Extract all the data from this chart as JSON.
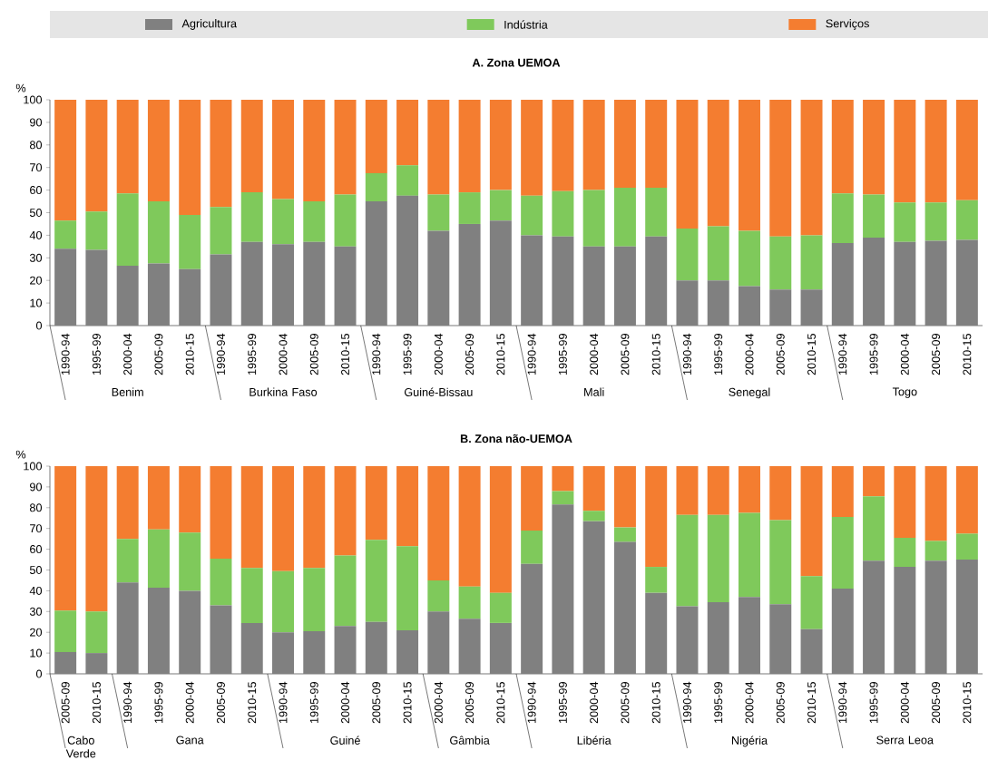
{
  "chart_data": [
    {
      "type": "bar",
      "stacked": true,
      "title": "A. Zona UEMOA",
      "ylabel": "%",
      "legend": "top",
      "categories": [
        "1990-94",
        "1995-99",
        "2000-04",
        "2005-09",
        "2010-15",
        "1990-94",
        "1995-99",
        "2000-04",
        "2005-09",
        "2010-15",
        "1990-94",
        "1995-99",
        "2000-04",
        "2005-09",
        "2010-15",
        "1990-94",
        "1995-99",
        "2000-04",
        "2005-09",
        "2010-15",
        "1990-94",
        "1995-99",
        "2000-04",
        "2005-09",
        "2010-15",
        "1990-94",
        "1995-99",
        "2000-04",
        "2005-09",
        "2010-15"
      ],
      "annotations": [
        "Benim",
        "Burkina Faso",
        "Guiné-Bissau",
        "Mali",
        "Senegal",
        "Togo"
      ],
      "ylim": [
        0,
        100
      ],
      "yticks": [
        0,
        10,
        20,
        30,
        40,
        50,
        60,
        70,
        80,
        90,
        100
      ],
      "series": [
        {
          "name": "Agricultura",
          "color": "#808080",
          "values": [
            34,
            33.5,
            26.5,
            27.5,
            25,
            31.5,
            37,
            36,
            37,
            35,
            55,
            57.5,
            42,
            45,
            46.5,
            40,
            39.5,
            35,
            35,
            39.5,
            20,
            20,
            17.5,
            16,
            16,
            36.5,
            39,
            37,
            37.5,
            38
          ]
        },
        {
          "name": "Indústria",
          "color": "#7fc95b",
          "values": [
            12.5,
            17,
            32,
            27.5,
            24,
            21,
            22,
            20,
            18,
            23,
            12.5,
            13.5,
            16,
            14,
            13.5,
            17.5,
            20,
            25,
            26,
            21.5,
            23,
            24,
            24.5,
            23.5,
            24,
            22,
            19,
            17.5,
            17,
            17.5
          ]
        },
        {
          "name": "Serviços",
          "color": "#f47d30",
          "values": [
            53.5,
            49.5,
            41.5,
            45,
            51,
            47.5,
            41,
            44,
            45,
            42,
            32.5,
            29,
            42,
            41,
            40,
            42.5,
            40.5,
            40,
            39,
            39,
            57,
            56,
            58,
            60.5,
            60,
            41.5,
            42,
            45.5,
            45.5,
            44.5
          ]
        }
      ]
    },
    {
      "type": "bar",
      "stacked": true,
      "title": "B. Zona não-UEMOA",
      "ylabel": "%",
      "categories": [
        "2005-09",
        "2010-15",
        "1990-94",
        "1995-99",
        "2000-04",
        "2005-09",
        "2010-15",
        "1990-94",
        "1995-99",
        "2000-04",
        "2005-09",
        "2010-15",
        "2000-04",
        "2005-09",
        "2010-15",
        "1990-94",
        "1995-99",
        "2000-04",
        "2005-09",
        "2010-15",
        "1990-94",
        "1995-99",
        "2000-04",
        "2005-09",
        "2010-15",
        "1990-94",
        "1995-99",
        "2000-04",
        "2005-09",
        "2010-15"
      ],
      "annotations": [
        "Cabo Verde",
        "Gana",
        "Guiné",
        "Gâmbia",
        "Libéria",
        "Nigéria",
        "Serra Leoa"
      ],
      "ylim": [
        0,
        100
      ],
      "yticks": [
        0,
        10,
        20,
        30,
        40,
        50,
        60,
        70,
        80,
        90,
        100
      ],
      "series": [
        {
          "color": "#808080",
          "values": [
            10.5,
            10,
            44,
            41.5,
            40,
            33,
            24.5,
            20,
            20.5,
            23,
            25,
            21,
            30,
            26.5,
            24.5,
            53,
            81.5,
            73.5,
            63.5,
            39,
            32.5,
            34.5,
            37,
            33.5,
            21.5,
            41,
            54.5,
            51.5,
            54.5,
            55
          ]
        },
        {
          "color": "#7fc95b",
          "values": [
            20,
            20,
            21,
            28,
            28,
            22.5,
            26.5,
            29.5,
            30.5,
            34,
            39.5,
            40.5,
            15,
            15.5,
            14.5,
            16,
            6.5,
            5,
            7,
            12.5,
            44,
            42,
            40.5,
            40.5,
            25.5,
            34.5,
            31,
            14,
            9.5,
            12.5
          ]
        },
        {
          "color": "#f47d30",
          "values": [
            69.5,
            70,
            35,
            30.5,
            32,
            44.5,
            49,
            50.5,
            49,
            43,
            35.5,
            38.5,
            55,
            58,
            61,
            31,
            12,
            21.5,
            29.5,
            48.5,
            23.5,
            23.5,
            22.5,
            26,
            53,
            24.5,
            14.5,
            34.5,
            36,
            32.5
          ]
        }
      ]
    }
  ]
}
